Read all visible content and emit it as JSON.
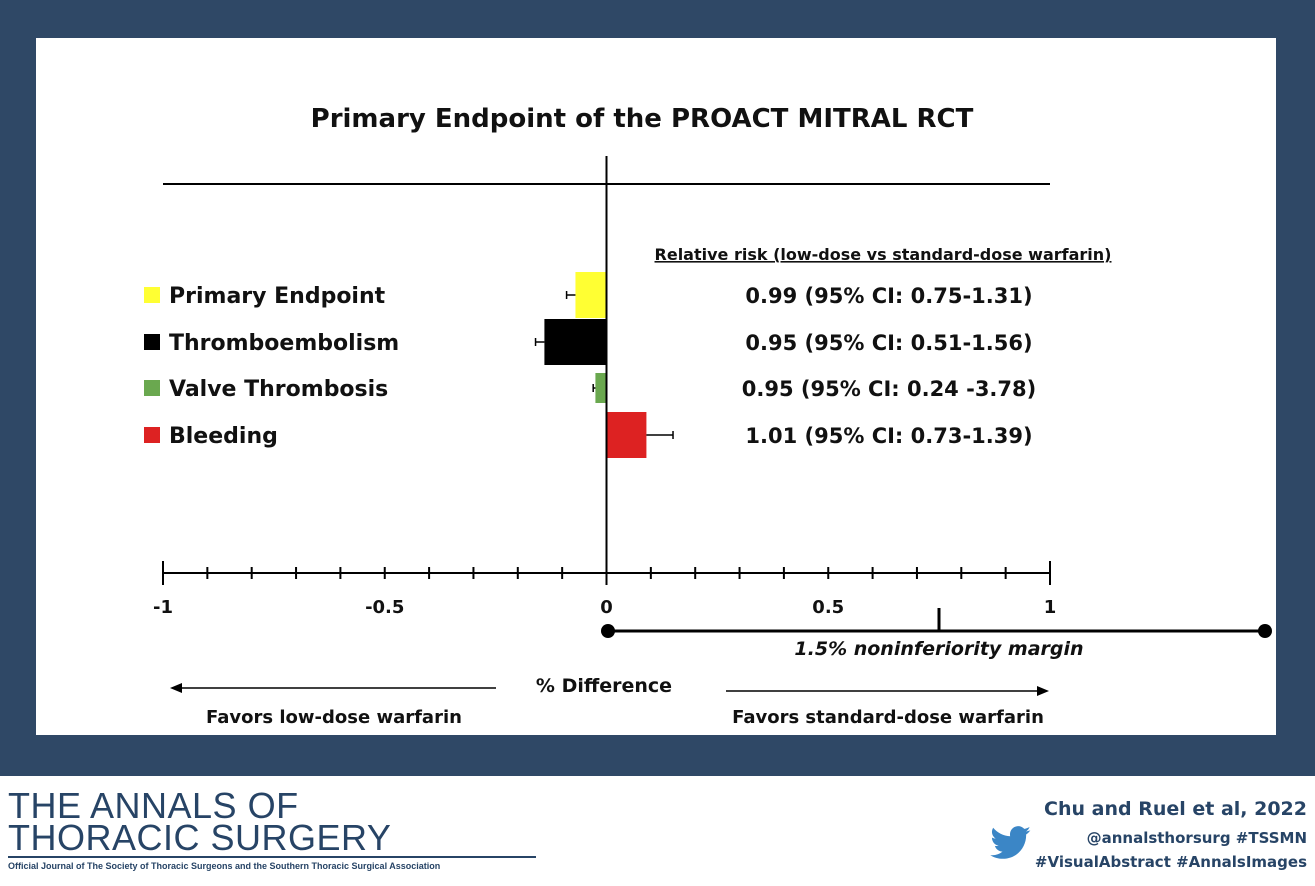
{
  "chart_data": {
    "type": "bar",
    "title": "Primary Endpoint of the PROACT MITRAL RCT",
    "orientation": "horizontal",
    "categories": [
      "Primary Endpoint",
      "Thromboembolism",
      "Valve Thrombosis",
      "Bleeding"
    ],
    "values": [
      -0.07,
      -0.14,
      -0.025,
      0.09
    ],
    "error_low": [
      -0.09,
      -0.16,
      -0.03,
      0.09
    ],
    "error_high": [
      -0.07,
      -0.14,
      -0.025,
      0.15
    ],
    "colors": [
      "#ffff33",
      "#000000",
      "#6aa84f",
      "#dd2222"
    ],
    "xlabel": "% Difference",
    "xlim": [
      -1,
      1
    ],
    "xticks": [
      -1,
      -0.5,
      0,
      0.5,
      1
    ],
    "xtick_labels": [
      "-1",
      "-0.5",
      "0",
      "0.5",
      "1"
    ],
    "noninferiority": {
      "label": "1.5% noninferiority margin",
      "range": [
        0,
        1.5
      ],
      "marker": 0.75
    },
    "relative_risk": {
      "header": "Relative risk (low-dose vs standard-dose warfarin)",
      "rows": [
        "0.99  (95% CI: 0.75-1.31)",
        "0.95 (95% CI: 0.51-1.56)",
        "0.95 (95% CI: 0.24 -3.78)",
        "1.01 (95% CI: 0.73-1.39)"
      ]
    },
    "favors_left": "Favors low-dose warfarin",
    "favors_right": "Favors standard-dose warfarin"
  },
  "footer": {
    "journal_line1": "THE ANNALS OF",
    "journal_line2": "THORACIC SURGERY",
    "journal_sub": "Official Journal of The Society of Thoracic Surgeons and the Southern Thoracic Surgical Association",
    "citation": "Chu and Ruel et al, 2022",
    "handle": "@annalsthorsurg #TSSMN",
    "hashtags": "#VisualAbstract #AnnalsImages",
    "icon": "twitter-icon"
  },
  "colors": {
    "frame": "#2f4866",
    "brand": "#274466"
  }
}
